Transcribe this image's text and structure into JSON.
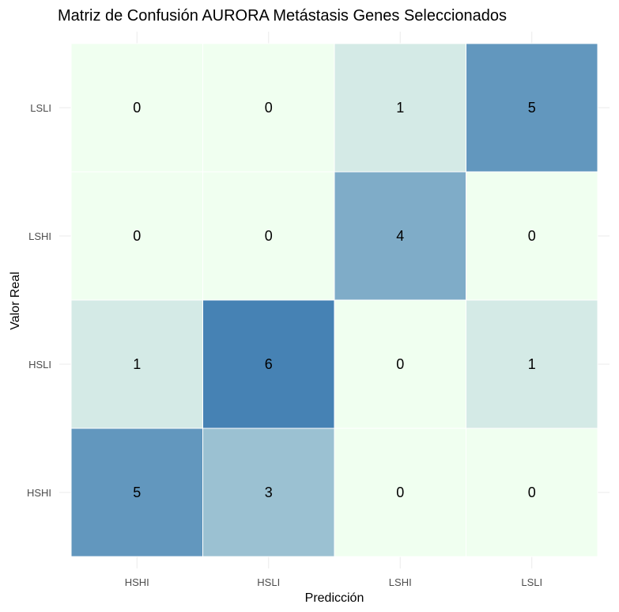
{
  "chart_data": {
    "type": "heatmap",
    "title": "Matriz de Confusión AURORA Metástasis Genes Seleccionados",
    "xlabel": "Predicción",
    "ylabel": "Valor Real",
    "x_categories": [
      "HSHI",
      "HSLI",
      "LSHI",
      "LSLI"
    ],
    "y_categories": [
      "HSHI",
      "HSLI",
      "LSHI",
      "LSLI"
    ],
    "matrix": [
      [
        5,
        3,
        0,
        0
      ],
      [
        1,
        6,
        0,
        1
      ],
      [
        0,
        0,
        4,
        0
      ],
      [
        0,
        0,
        1,
        5
      ]
    ],
    "color_scale": {
      "low": "#f0fff0",
      "high": "#4682b4",
      "min": 0,
      "max": 6
    },
    "grid": true
  }
}
